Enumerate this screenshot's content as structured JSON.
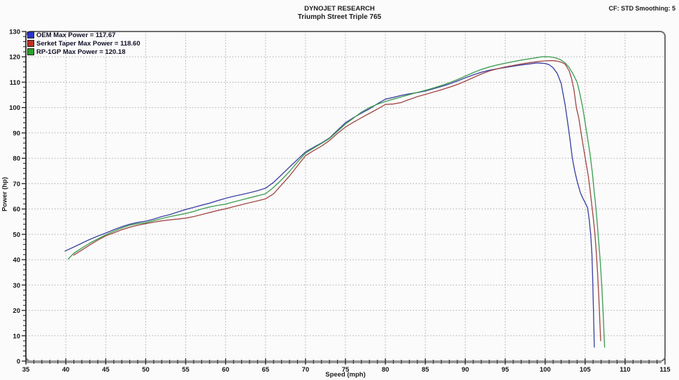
{
  "header": {
    "line1": "DYNOJET RESEARCH",
    "line2": "Triumph Street Triple 765",
    "right": "CF: STD  Smoothing: 5"
  },
  "chart_data": {
    "type": "line",
    "title": "DYNOJET RESEARCH",
    "subtitle": "Triumph Street Triple 765",
    "correction_note": "CF: STD  Smoothing: 5",
    "xlabel": "Speed (mph)",
    "ylabel": "Power (hp)",
    "xlim": [
      35,
      115
    ],
    "ylim": [
      0,
      130
    ],
    "x_ticks": [
      35,
      40,
      45,
      50,
      55,
      60,
      65,
      70,
      75,
      80,
      85,
      90,
      95,
      100,
      105,
      110,
      115
    ],
    "y_ticks": [
      0,
      10,
      20,
      30,
      40,
      50,
      60,
      70,
      80,
      90,
      100,
      110,
      120,
      130
    ],
    "grid": "dotted gray, vertical every 5 mph, horizontal every 10 hp",
    "legend_position": "top-left",
    "series": [
      {
        "id": "oem",
        "name": "OEM",
        "legend_label": "OEM Max Power = 117.67",
        "max_power_hp": 117.67,
        "line_color": "#3c43a0",
        "swatch_color": "#2a35c8",
        "points": [
          [
            39.9,
            43.4
          ],
          [
            41,
            45
          ],
          [
            42,
            46.5
          ],
          [
            43,
            48
          ],
          [
            44,
            49.3
          ],
          [
            45,
            50.5
          ],
          [
            46,
            51.8
          ],
          [
            47,
            53
          ],
          [
            48,
            54
          ],
          [
            49,
            54.7
          ],
          [
            50,
            55.2
          ],
          [
            51,
            56
          ],
          [
            52,
            57
          ],
          [
            53,
            57.8
          ],
          [
            54,
            58.8
          ],
          [
            55,
            59.8
          ],
          [
            56,
            60.6
          ],
          [
            57,
            61.5
          ],
          [
            58,
            62.3
          ],
          [
            59,
            63.3
          ],
          [
            60,
            64.2
          ],
          [
            61,
            65
          ],
          [
            62,
            65.7
          ],
          [
            63,
            66.4
          ],
          [
            64,
            67.2
          ],
          [
            65,
            68.2
          ],
          [
            66,
            70.5
          ],
          [
            67,
            73.5
          ],
          [
            68,
            76.5
          ],
          [
            69,
            79.5
          ],
          [
            70,
            82.5
          ],
          [
            71,
            84.3
          ],
          [
            72,
            86
          ],
          [
            73,
            88
          ],
          [
            74,
            91
          ],
          [
            75,
            94
          ],
          [
            76,
            96
          ],
          [
            77,
            97.8
          ],
          [
            78,
            99.5
          ],
          [
            79,
            101.5
          ],
          [
            80,
            103.3
          ],
          [
            81,
            104
          ],
          [
            82,
            104.8
          ],
          [
            83,
            105.4
          ],
          [
            84,
            105.9
          ],
          [
            85,
            106.5
          ],
          [
            86,
            107.4
          ],
          [
            87,
            108.3
          ],
          [
            88,
            109.3
          ],
          [
            89,
            110.5
          ],
          [
            90,
            111.7
          ],
          [
            91,
            112.9
          ],
          [
            92,
            113.9
          ],
          [
            93,
            114.7
          ],
          [
            94,
            115.3
          ],
          [
            95,
            115.8
          ],
          [
            96,
            116.3
          ],
          [
            97,
            116.8
          ],
          [
            98,
            117.2
          ],
          [
            99,
            117.6
          ],
          [
            100,
            117.4
          ],
          [
            100.5,
            116.9
          ],
          [
            101,
            115.7
          ],
          [
            101.5,
            113.5
          ],
          [
            102,
            109.5
          ],
          [
            102.5,
            101
          ],
          [
            103,
            90
          ],
          [
            103.4,
            80
          ],
          [
            103.7,
            75
          ],
          [
            104,
            71
          ],
          [
            104.4,
            66.5
          ],
          [
            104.7,
            64.3
          ],
          [
            105,
            62.5
          ],
          [
            105.3,
            60.5
          ],
          [
            105.5,
            56
          ],
          [
            105.7,
            50
          ],
          [
            105.85,
            42
          ],
          [
            105.95,
            32
          ],
          [
            106.05,
            20
          ],
          [
            106.15,
            5.5
          ]
        ]
      },
      {
        "id": "serket-taper",
        "name": "Serket Taper",
        "legend_label": "Serket Taper Max Power = 118.60",
        "max_power_hp": 118.6,
        "line_color": "#a04a48",
        "swatch_color": "#c03022",
        "points": [
          [
            41,
            41.8
          ],
          [
            42,
            43.8
          ],
          [
            43,
            45.8
          ],
          [
            44,
            47.7
          ],
          [
            45,
            49.4
          ],
          [
            46,
            50.6
          ],
          [
            47,
            51.8
          ],
          [
            48,
            52.8
          ],
          [
            49,
            53.6
          ],
          [
            50,
            54.2
          ],
          [
            51,
            54.8
          ],
          [
            52,
            55.3
          ],
          [
            53,
            55.7
          ],
          [
            54,
            56
          ],
          [
            55,
            56.4
          ],
          [
            56,
            57
          ],
          [
            57,
            57.8
          ],
          [
            58,
            58.6
          ],
          [
            59,
            59.4
          ],
          [
            60,
            60.1
          ],
          [
            61,
            60.9
          ],
          [
            62,
            61.7
          ],
          [
            63,
            62.5
          ],
          [
            64,
            63.2
          ],
          [
            65,
            64
          ],
          [
            66,
            66
          ],
          [
            67,
            69.5
          ],
          [
            68,
            73
          ],
          [
            69,
            77
          ],
          [
            70,
            81
          ],
          [
            71,
            83
          ],
          [
            72,
            84.8
          ],
          [
            73,
            87
          ],
          [
            74,
            89.8
          ],
          [
            75,
            92.3
          ],
          [
            76,
            94.2
          ],
          [
            77,
            96
          ],
          [
            78,
            97.7
          ],
          [
            79,
            99.4
          ],
          [
            80,
            101.2
          ],
          [
            81,
            101.4
          ],
          [
            82,
            102
          ],
          [
            83,
            103.2
          ],
          [
            84,
            104.3
          ],
          [
            85,
            105.2
          ],
          [
            86,
            106.1
          ],
          [
            87,
            107
          ],
          [
            88,
            108
          ],
          [
            89,
            109.1
          ],
          [
            90,
            110.4
          ],
          [
            91,
            111.8
          ],
          [
            92,
            113.2
          ],
          [
            93,
            114.4
          ],
          [
            94,
            115.3
          ],
          [
            95,
            116
          ],
          [
            96,
            116.6
          ],
          [
            97,
            117.2
          ],
          [
            98,
            117.7
          ],
          [
            99,
            118.1
          ],
          [
            100,
            118.4
          ],
          [
            100.5,
            118.5
          ],
          [
            101,
            118.5
          ],
          [
            101.5,
            118.3
          ],
          [
            102,
            117.9
          ],
          [
            102.5,
            117.1
          ],
          [
            103,
            114.5
          ],
          [
            103.3,
            111.5
          ],
          [
            103.6,
            107
          ],
          [
            103.9,
            100
          ],
          [
            104.2,
            96
          ],
          [
            104.5,
            90
          ],
          [
            104.8,
            84
          ],
          [
            105.1,
            78.5
          ],
          [
            105.4,
            73
          ],
          [
            105.6,
            68
          ],
          [
            105.8,
            62.5
          ],
          [
            106,
            57
          ],
          [
            106.2,
            51
          ],
          [
            106.4,
            43
          ],
          [
            106.55,
            35
          ],
          [
            106.7,
            26
          ],
          [
            106.85,
            15
          ],
          [
            106.95,
            8
          ]
        ]
      },
      {
        "id": "rp-1gp",
        "name": "RP-1GP",
        "legend_label": "RP-1GP Max Power = 120.18",
        "max_power_hp": 120.18,
        "line_color": "#3f9e52",
        "swatch_color": "#2aa22a",
        "points": [
          [
            40.3,
            40.3
          ],
          [
            41,
            42.5
          ],
          [
            42,
            44.6
          ],
          [
            43,
            46.5
          ],
          [
            44,
            48.2
          ],
          [
            45,
            49.8
          ],
          [
            46,
            51.2
          ],
          [
            47,
            52.5
          ],
          [
            48,
            53.6
          ],
          [
            49,
            54.2
          ],
          [
            50,
            54.6
          ],
          [
            51,
            55.4
          ],
          [
            52,
            56.2
          ],
          [
            53,
            57
          ],
          [
            54,
            57.6
          ],
          [
            55,
            58.2
          ],
          [
            56,
            59
          ],
          [
            57,
            60
          ],
          [
            58,
            60.8
          ],
          [
            59,
            61.4
          ],
          [
            60,
            61.9
          ],
          [
            61,
            62.8
          ],
          [
            62,
            63.6
          ],
          [
            63,
            64.4
          ],
          [
            64,
            65.2
          ],
          [
            65,
            66
          ],
          [
            66,
            68.5
          ],
          [
            67,
            71.5
          ],
          [
            68,
            74.8
          ],
          [
            69,
            78.5
          ],
          [
            70,
            82
          ],
          [
            71,
            84
          ],
          [
            72,
            85.8
          ],
          [
            73,
            87.8
          ],
          [
            74,
            90.6
          ],
          [
            75,
            93.5
          ],
          [
            76,
            95.8
          ],
          [
            77,
            98.2
          ],
          [
            78,
            100
          ],
          [
            79,
            101.3
          ],
          [
            80,
            102.4
          ],
          [
            81,
            103.3
          ],
          [
            82,
            104.2
          ],
          [
            83,
            105.1
          ],
          [
            84,
            106
          ],
          [
            85,
            106.8
          ],
          [
            86,
            107.7
          ],
          [
            87,
            108.7
          ],
          [
            88,
            109.8
          ],
          [
            89,
            111
          ],
          [
            90,
            112.4
          ],
          [
            91,
            113.8
          ],
          [
            92,
            115
          ],
          [
            93,
            116
          ],
          [
            94,
            116.8
          ],
          [
            95,
            117.5
          ],
          [
            96,
            118.1
          ],
          [
            97,
            118.7
          ],
          [
            98,
            119.2
          ],
          [
            99,
            119.7
          ],
          [
            99.5,
            120
          ],
          [
            100,
            120.1
          ],
          [
            100.5,
            120
          ],
          [
            101,
            119.8
          ],
          [
            101.5,
            119.4
          ],
          [
            102,
            118.7
          ],
          [
            102.5,
            117.6
          ],
          [
            103,
            115.8
          ],
          [
            103.5,
            113.2
          ],
          [
            104,
            110
          ],
          [
            104.3,
            106
          ],
          [
            104.7,
            100
          ],
          [
            105,
            94
          ],
          [
            105.3,
            88
          ],
          [
            105.6,
            82
          ],
          [
            105.9,
            74.5
          ],
          [
            106.1,
            68
          ],
          [
            106.3,
            62
          ],
          [
            106.5,
            55
          ],
          [
            106.7,
            47
          ],
          [
            106.9,
            39
          ],
          [
            107.1,
            29
          ],
          [
            107.25,
            19
          ],
          [
            107.4,
            8
          ],
          [
            107.45,
            5.5
          ]
        ]
      }
    ]
  }
}
